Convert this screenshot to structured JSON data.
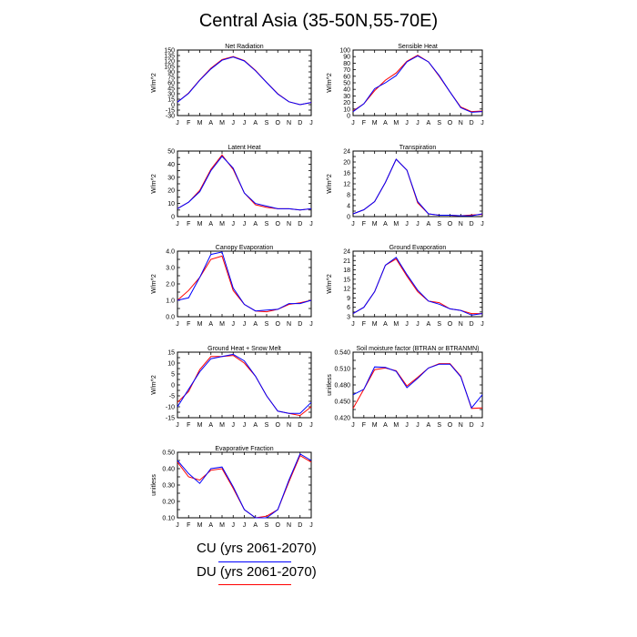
{
  "title": "Central Asia (35-50N,55-70E)",
  "months": [
    "J",
    "F",
    "M",
    "A",
    "M",
    "J",
    "J",
    "A",
    "S",
    "O",
    "N",
    "D",
    "J"
  ],
  "legend": [
    {
      "label": "CU (yrs 2061-2070)",
      "color": "#0000ff"
    },
    {
      "label": "DU (yrs 2061-2070)",
      "color": "#ff0000"
    }
  ],
  "chart_data": [
    {
      "type": "line",
      "title": "Net Radiation",
      "ylabel": "W/m^2",
      "ylim": [
        -30,
        150
      ],
      "yticks": [
        -30,
        -15,
        0,
        15,
        30,
        45,
        60,
        75,
        90,
        105,
        120,
        135,
        150
      ],
      "ytick_labels": [
        "-30",
        "-15",
        "0",
        "15",
        "30",
        "45",
        "60",
        "75",
        "90",
        "105",
        "120",
        "135",
        "150"
      ],
      "series": [
        {
          "name": "CU (yrs 2061-2070)",
          "color": "#0000ff",
          "values": [
            7,
            31,
            67,
            98,
            122,
            131,
            120,
            93,
            61,
            29,
            8,
            0,
            6
          ]
        },
        {
          "name": "DU (yrs 2061-2070)",
          "color": "#ff0000",
          "values": [
            7,
            32,
            68,
            100,
            124,
            132,
            121,
            94,
            61,
            30,
            8,
            0,
            6
          ]
        }
      ]
    },
    {
      "type": "line",
      "title": "Sensible Heat",
      "ylabel": "W/m^2",
      "ylim": [
        0,
        100
      ],
      "yticks": [
        0,
        10,
        20,
        30,
        40,
        50,
        60,
        70,
        80,
        90,
        100
      ],
      "ytick_labels": [
        "0",
        "10",
        "20",
        "30",
        "40",
        "50",
        "60",
        "70",
        "80",
        "90",
        "100"
      ],
      "series": [
        {
          "name": "CU (yrs 2061-2070)",
          "color": "#0000ff",
          "values": [
            6,
            18,
            41,
            50,
            61,
            82,
            91,
            82,
            61,
            36,
            12,
            5,
            6
          ]
        },
        {
          "name": "DU (yrs 2061-2070)",
          "color": "#ff0000",
          "values": [
            7,
            18,
            38,
            54,
            65,
            83,
            92,
            82,
            60,
            36,
            13,
            6,
            7
          ]
        }
      ]
    },
    {
      "type": "line",
      "title": "Latent Heat",
      "ylabel": "W/m^2",
      "ylim": [
        0,
        50
      ],
      "yticks": [
        0,
        5,
        10,
        15,
        20,
        25,
        30,
        35,
        40,
        45,
        50
      ],
      "ytick_labels": [
        "0",
        "10",
        "20",
        "30",
        "40",
        "50"
      ],
      "ytick_label_values": [
        0,
        10,
        20,
        30,
        40,
        50
      ],
      "series": [
        {
          "name": "CU (yrs 2061-2070)",
          "color": "#0000ff",
          "values": [
            6,
            11,
            19,
            35,
            46,
            37,
            18,
            10,
            8,
            6,
            6,
            5,
            6
          ]
        },
        {
          "name": "DU (yrs 2061-2070)",
          "color": "#ff0000",
          "values": [
            6,
            11,
            20,
            36,
            47,
            36,
            18,
            9,
            7,
            6,
            6,
            5,
            6
          ]
        }
      ]
    },
    {
      "type": "line",
      "title": "Transpiration",
      "ylabel": "W/m^2",
      "ylim": [
        0,
        24
      ],
      "yticks": [
        0,
        2,
        4,
        6,
        8,
        10,
        12,
        14,
        16,
        18,
        20,
        22,
        24
      ],
      "ytick_labels": [
        "0",
        "4",
        "8",
        "12",
        "16",
        "20",
        "24"
      ],
      "ytick_label_values": [
        0,
        4,
        8,
        12,
        16,
        20,
        24
      ],
      "series": [
        {
          "name": "CU (yrs 2061-2070)",
          "color": "#0000ff",
          "values": [
            1,
            2.5,
            5.5,
            12.5,
            21,
            17,
            5.5,
            1,
            0.5,
            0.5,
            0.3,
            0.3,
            1
          ]
        },
        {
          "name": "DU (yrs 2061-2070)",
          "color": "#ff0000",
          "values": [
            1,
            2.5,
            5.5,
            12.5,
            21,
            17,
            5,
            1,
            0.5,
            0.5,
            0.3,
            0.6,
            0.8
          ]
        }
      ]
    },
    {
      "type": "line",
      "title": "Canopy Evaporation",
      "ylabel": "W/m^2",
      "ylim": [
        0,
        4
      ],
      "yticks": [
        0,
        0.5,
        1,
        1.5,
        2,
        2.5,
        3,
        3.5,
        4
      ],
      "ytick_labels": [
        "0.0",
        "1.0",
        "2.0",
        "3.0",
        "4.0"
      ],
      "ytick_label_values": [
        0,
        1,
        2,
        3,
        4
      ],
      "series": [
        {
          "name": "CU (yrs 2061-2070)",
          "color": "#0000ff",
          "values": [
            1.0,
            1.15,
            2.4,
            3.8,
            3.95,
            1.75,
            0.75,
            0.35,
            0.4,
            0.45,
            0.8,
            0.8,
            1.0
          ]
        },
        {
          "name": "DU (yrs 2061-2070)",
          "color": "#ff0000",
          "values": [
            1.0,
            1.6,
            2.4,
            3.5,
            3.7,
            1.6,
            0.75,
            0.35,
            0.3,
            0.45,
            0.75,
            0.85,
            1.0
          ]
        }
      ]
    },
    {
      "type": "line",
      "title": "Ground Evaporation",
      "ylabel": "W/m^2",
      "ylim": [
        3,
        24
      ],
      "yticks": [
        3,
        4.5,
        6,
        7.5,
        9,
        10.5,
        12,
        13.5,
        15,
        16.5,
        18,
        19.5,
        21,
        22.5,
        24
      ],
      "ytick_labels": [
        "3",
        "6",
        "9",
        "12",
        "15",
        "18",
        "21",
        "24"
      ],
      "ytick_label_values": [
        3,
        6,
        9,
        12,
        15,
        18,
        21,
        24
      ],
      "series": [
        {
          "name": "CU (yrs 2061-2070)",
          "color": "#0000ff",
          "values": [
            4,
            6,
            11,
            19.5,
            22,
            16.5,
            11.5,
            8,
            7,
            5.5,
            5,
            3.5,
            4
          ]
        },
        {
          "name": "DU (yrs 2061-2070)",
          "color": "#ff0000",
          "values": [
            4,
            6,
            11,
            19.5,
            21.5,
            16,
            11,
            8,
            7.5,
            5.5,
            5,
            4,
            4
          ]
        }
      ]
    },
    {
      "type": "line",
      "title": "Ground Heat + Snow Melt",
      "ylabel": "W/m^2",
      "ylim": [
        -15,
        15
      ],
      "yticks": [
        -15,
        -12.5,
        -10,
        -7.5,
        -5,
        -2.5,
        0,
        2.5,
        5,
        7.5,
        10,
        12.5,
        15
      ],
      "ytick_labels": [
        "-15",
        "-10",
        "-5",
        "0",
        "5",
        "10",
        "15"
      ],
      "ytick_label_values": [
        -15,
        -10,
        -5,
        0,
        5,
        10,
        15
      ],
      "series": [
        {
          "name": "CU (yrs 2061-2070)",
          "color": "#0000ff",
          "values": [
            -10,
            -2,
            6,
            12,
            13,
            14,
            11,
            4,
            -5,
            -12,
            -13,
            -13,
            -8
          ]
        },
        {
          "name": "DU (yrs 2061-2070)",
          "color": "#ff0000",
          "values": [
            -8,
            -3,
            7,
            13,
            13,
            13.5,
            10,
            4,
            -5,
            -12,
            -13,
            -14,
            -10
          ]
        }
      ]
    },
    {
      "type": "line",
      "title": "Soil moisture factor (BTRAN or BTRANMN)",
      "ylabel": "unitless",
      "ylim": [
        0.42,
        0.54
      ],
      "yticks": [
        0.42,
        0.435,
        0.45,
        0.465,
        0.48,
        0.495,
        0.51,
        0.525,
        0.54
      ],
      "ytick_labels": [
        "0.420",
        "0.450",
        "0.480",
        "0.510",
        "0.540"
      ],
      "ytick_label_values": [
        0.42,
        0.45,
        0.48,
        0.51,
        0.54
      ],
      "series": [
        {
          "name": "CU (yrs 2061-2070)",
          "color": "#0000ff",
          "values": [
            0.462,
            0.472,
            0.513,
            0.512,
            0.505,
            0.475,
            0.492,
            0.511,
            0.518,
            0.518,
            0.495,
            0.438,
            0.462
          ]
        },
        {
          "name": "DU (yrs 2061-2070)",
          "color": "#ff0000",
          "values": [
            0.437,
            0.472,
            0.508,
            0.511,
            0.506,
            0.478,
            0.494,
            0.511,
            0.519,
            0.519,
            0.496,
            0.437,
            0.438
          ]
        }
      ]
    },
    {
      "type": "line",
      "title": "Evaporative Fraction",
      "ylabel": "unitless",
      "ylim": [
        0.1,
        0.5
      ],
      "yticks": [
        0.1,
        0.15,
        0.2,
        0.25,
        0.3,
        0.35,
        0.4,
        0.45,
        0.5
      ],
      "ytick_labels": [
        "0.10",
        "0.20",
        "0.30",
        "0.40",
        "0.50"
      ],
      "ytick_label_values": [
        0.1,
        0.2,
        0.3,
        0.4,
        0.5
      ],
      "series": [
        {
          "name": "CU (yrs 2061-2070)",
          "color": "#0000ff",
          "values": [
            0.45,
            0.37,
            0.31,
            0.4,
            0.41,
            0.29,
            0.15,
            0.1,
            0.1,
            0.15,
            0.33,
            0.49,
            0.45
          ]
        },
        {
          "name": "DU (yrs 2061-2070)",
          "color": "#ff0000",
          "values": [
            0.44,
            0.35,
            0.33,
            0.39,
            0.4,
            0.28,
            0.15,
            0.1,
            0.11,
            0.15,
            0.32,
            0.48,
            0.44
          ]
        }
      ]
    }
  ]
}
